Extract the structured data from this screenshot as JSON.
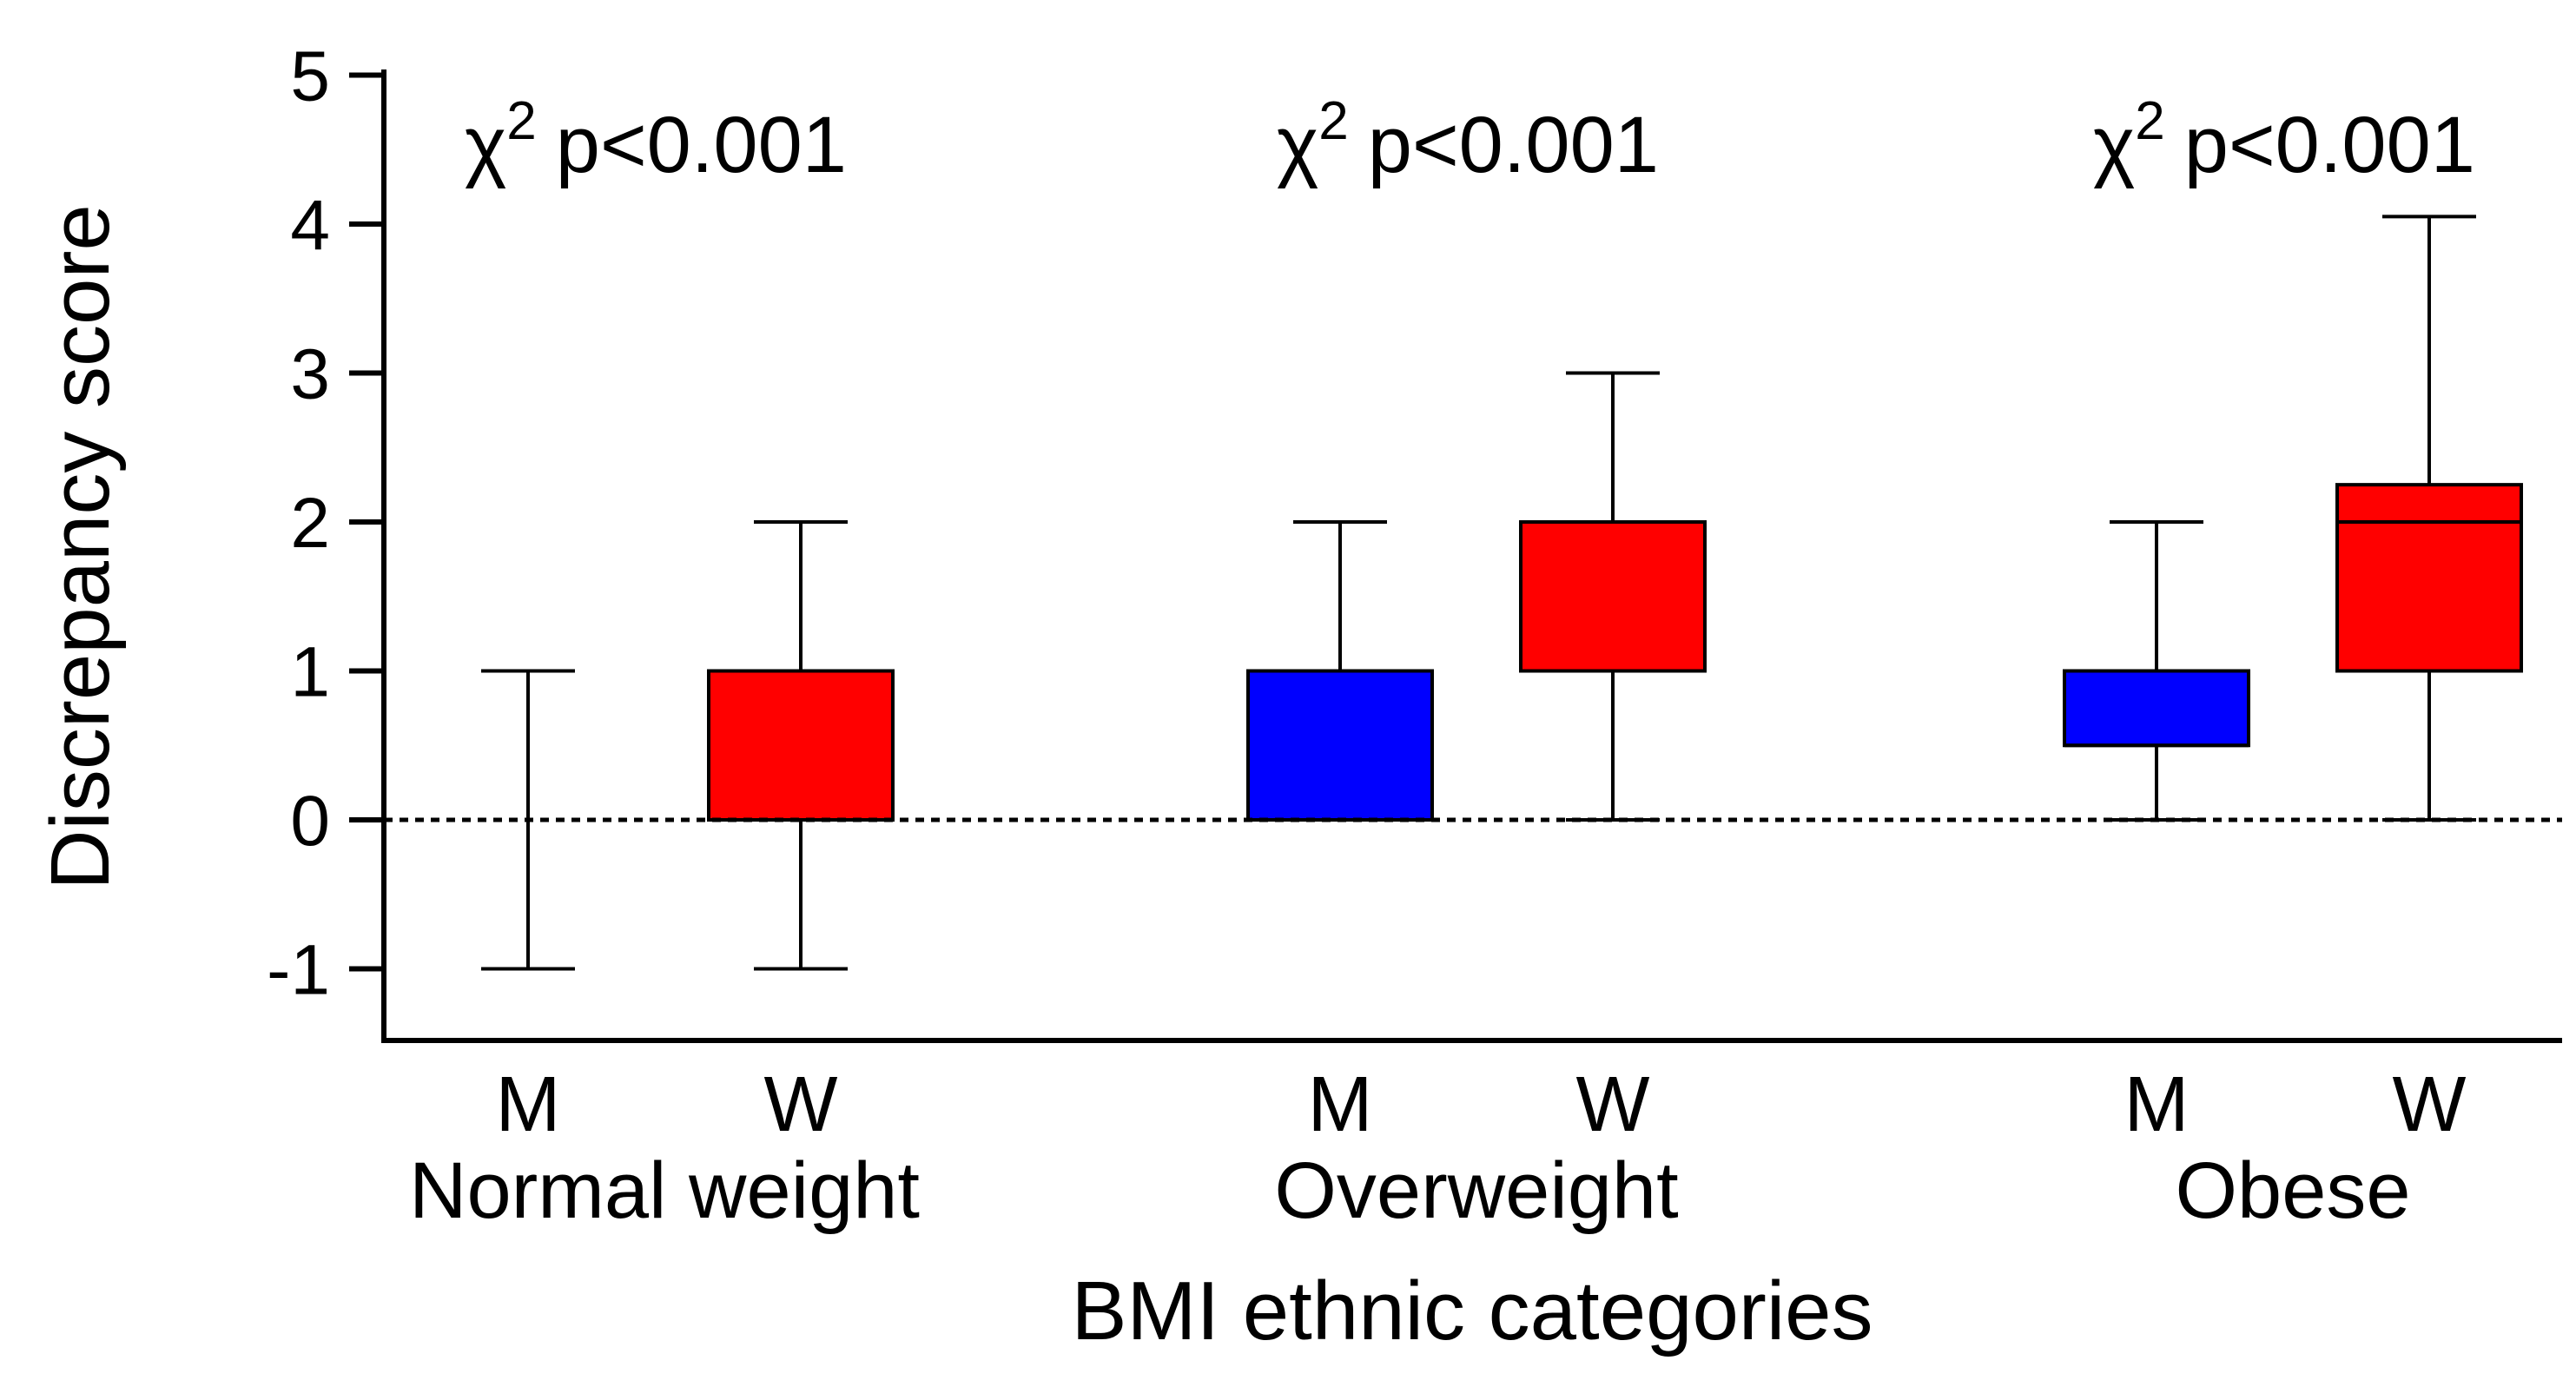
{
  "chart_data": {
    "type": "box",
    "ylabel": "Discrepancy score",
    "xlabel": "BMI ethnic categories",
    "ylim": [
      -1.5,
      5
    ],
    "yticks": [
      -1,
      0,
      1,
      2,
      3,
      4,
      5
    ],
    "reference_line": {
      "y": 0,
      "style": "dotted"
    },
    "colors": {
      "M": "#0000ff",
      "W": "#ff0000"
    },
    "groups": [
      {
        "name": "Normal weight",
        "annotation": {
          "symbol": "χ",
          "superscript": "2",
          "text": "p<0.001"
        },
        "boxes": [
          {
            "label": "M",
            "min": -1,
            "q1": 0,
            "median": 0,
            "q3": 0,
            "max": 1
          },
          {
            "label": "W",
            "min": -1,
            "q1": 0,
            "median": 0,
            "q3": 1,
            "max": 2
          }
        ]
      },
      {
        "name": "Overweight",
        "annotation": {
          "symbol": "χ",
          "superscript": "2",
          "text": "p<0.001"
        },
        "boxes": [
          {
            "label": "M",
            "min": 0,
            "q1": 0,
            "median": 0,
            "q3": 1,
            "max": 2
          },
          {
            "label": "W",
            "min": 0,
            "q1": 1,
            "median": 1,
            "q3": 2,
            "max": 3
          }
        ]
      },
      {
        "name": "Obese",
        "annotation": {
          "symbol": "χ",
          "superscript": "2",
          "text": "p<0.001"
        },
        "boxes": [
          {
            "label": "M",
            "min": 0,
            "q1": 0.5,
            "median": 0.5,
            "q3": 1,
            "max": 2
          },
          {
            "label": "W",
            "min": 0,
            "q1": 1,
            "median": 2,
            "q3": 2.25,
            "max": 4.05
          }
        ]
      }
    ]
  }
}
